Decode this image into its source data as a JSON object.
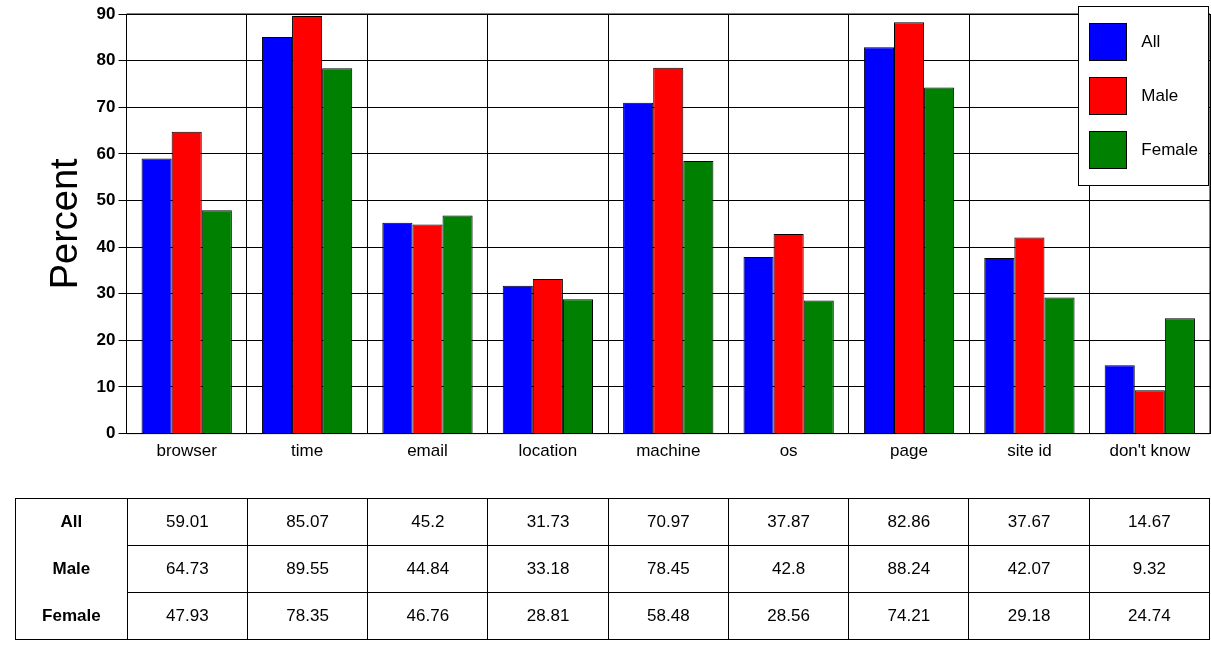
{
  "chart_data": {
    "type": "bar",
    "ylabel": "Percent",
    "categories": [
      "browser",
      "time",
      "email",
      "location",
      "machine",
      "os",
      "page",
      "site id",
      "don't know"
    ],
    "series": [
      {
        "name": "All",
        "color": "#0000ff",
        "values": [
          59.01,
          85.07,
          45.2,
          31.73,
          70.97,
          37.87,
          82.86,
          37.67,
          14.67
        ]
      },
      {
        "name": "Male",
        "color": "#ff0000",
        "values": [
          64.73,
          89.55,
          44.84,
          33.18,
          78.45,
          42.8,
          88.24,
          42.07,
          9.32
        ]
      },
      {
        "name": "Female",
        "color": "#008000",
        "values": [
          47.93,
          78.35,
          46.76,
          28.81,
          58.48,
          28.56,
          74.21,
          29.18,
          24.74
        ]
      }
    ],
    "ylim": [
      0,
      90
    ],
    "yticks": [
      0,
      10,
      20,
      30,
      40,
      50,
      60,
      70,
      80,
      90
    ],
    "grid": true,
    "legend": "top right",
    "data_labels": true
  }
}
